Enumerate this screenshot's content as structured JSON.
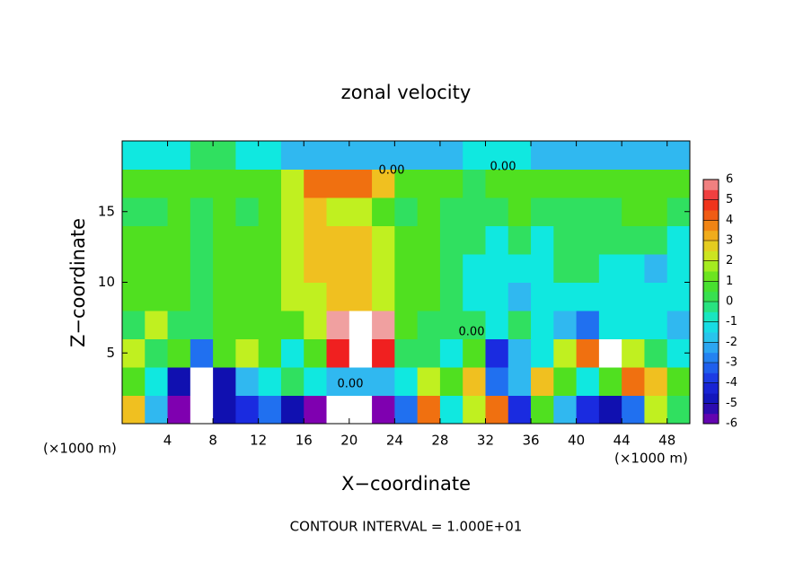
{
  "chart_data": {
    "type": "heatmap",
    "title": "zonal velocity",
    "x_label": "X−coordinate",
    "y_label": "Z−coordinate",
    "x_unit_labels": [
      "(×1000 m)",
      "(×1000 m)"
    ],
    "footer": "CONTOUR INTERVAL = 1.000E+01",
    "contour_labels": [
      "0.00",
      "0.00",
      "0.00",
      "0.00"
    ],
    "xlim": [
      0,
      50
    ],
    "ylim": [
      0,
      20
    ],
    "xticks": [
      4,
      8,
      12,
      16,
      20,
      24,
      28,
      32,
      36,
      40,
      44,
      48
    ],
    "yticks": [
      5,
      10,
      15
    ],
    "clim": [
      -6,
      6
    ],
    "cticks": [
      6,
      5,
      4,
      3,
      2,
      1,
      0,
      -1,
      -2,
      -3,
      -4,
      -5,
      -6
    ],
    "colormap": [
      "#7f00b0",
      "#1010b0",
      "#1a2be0",
      "#2070f0",
      "#30b8f0",
      "#10e8e0",
      "#30e060",
      "#50e020",
      "#c0f020",
      "#f0c020",
      "#f07010",
      "#f02020",
      "#f0a0a0"
    ],
    "x": [
      1,
      3,
      5,
      7,
      9,
      11,
      13,
      15,
      17,
      19,
      21,
      23,
      25,
      27,
      29,
      31,
      33,
      35,
      37,
      39,
      41,
      43,
      45,
      47,
      49
    ],
    "y": [
      1,
      3,
      5,
      7,
      9,
      11,
      13,
      15,
      17,
      19
    ],
    "z": [
      [
        3,
        -2,
        -6,
        7,
        -5,
        -4,
        -3,
        -5,
        -6,
        -7,
        -7,
        -6,
        -3,
        4,
        -1,
        2,
        4,
        -4,
        1,
        -2,
        -4,
        -5,
        -3,
        2,
        0
      ],
      [
        1,
        -1,
        -5,
        -7,
        -5,
        -2,
        -1,
        0,
        -1,
        -2,
        -2,
        -2,
        -1,
        2,
        1,
        3,
        -3,
        -2,
        3,
        1,
        -1,
        1,
        4,
        3,
        1
      ],
      [
        2,
        0,
        1,
        -3,
        1,
        2,
        1,
        -1,
        1,
        5,
        7,
        5,
        0,
        0,
        -1,
        1,
        -4,
        -2,
        -1,
        2,
        4,
        7,
        2,
        0,
        -1
      ],
      [
        0,
        2,
        0,
        0,
        1,
        1,
        1,
        1,
        2,
        6,
        8,
        6,
        1,
        0,
        0,
        0,
        -1,
        0,
        -1,
        -2,
        -3,
        -1,
        -1,
        -1,
        -2
      ],
      [
        1,
        1,
        1,
        0,
        1,
        1,
        1,
        2,
        2,
        3,
        3,
        2,
        1,
        1,
        0,
        -1,
        -1,
        -2,
        -1,
        -1,
        -1,
        -1,
        -1,
        -1,
        -1
      ],
      [
        1,
        1,
        1,
        0,
        1,
        1,
        1,
        2,
        3,
        3,
        3,
        2,
        1,
        1,
        0,
        -1,
        -1,
        -1,
        -1,
        0,
        0,
        -1,
        -1,
        -2,
        -1
      ],
      [
        1,
        1,
        1,
        0,
        1,
        1,
        1,
        2,
        3,
        3,
        3,
        2,
        1,
        1,
        0,
        0,
        -1,
        0,
        -1,
        0,
        0,
        0,
        0,
        0,
        -1
      ],
      [
        0,
        0,
        1,
        0,
        1,
        0,
        1,
        2,
        3,
        2,
        2,
        1,
        0,
        1,
        0,
        0,
        0,
        1,
        0,
        0,
        0,
        0,
        1,
        1,
        0
      ],
      [
        1,
        1,
        1,
        1,
        1,
        1,
        1,
        2,
        4,
        4,
        4,
        3,
        1,
        1,
        1,
        0,
        1,
        1,
        1,
        1,
        1,
        1,
        1,
        1,
        1
      ],
      [
        -1,
        -1,
        -1,
        0,
        0,
        -1,
        -1,
        -2,
        -2,
        -2,
        -2,
        -2,
        -2,
        -2,
        -2,
        -1,
        -1,
        -1,
        -2,
        -2,
        -2,
        -2,
        -2,
        -2,
        -2
      ]
    ]
  }
}
